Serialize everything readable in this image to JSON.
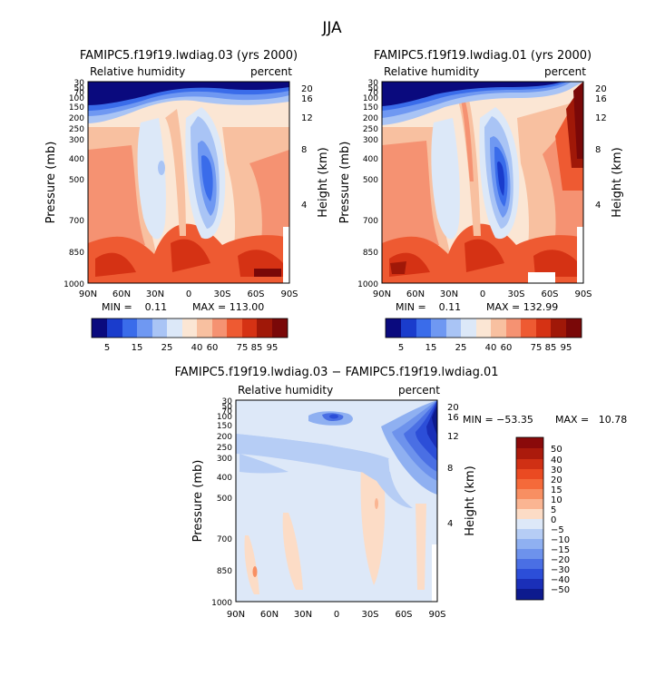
{
  "figure_title": "JJA",
  "chart_data": [
    {
      "type": "heatmap",
      "title": "FAMIPC5.f19f19.lwdiag.03 (yrs 2000)",
      "subtitle_left": "Relative humidity",
      "subtitle_right": "percent",
      "xlabel": "",
      "ylabel": "Pressure (mb)",
      "ylabel_right": "Height (km)",
      "x_ticks": [
        "90N",
        "60N",
        "30N",
        "0",
        "30S",
        "60S",
        "90S"
      ],
      "x_range": [
        90,
        -90
      ],
      "y_ticks": [
        "30",
        "50",
        "70",
        "100",
        "150",
        "200",
        "250",
        "300",
        "400",
        "500",
        "700",
        "850",
        "1000"
      ],
      "y_range": [
        30,
        1000
      ],
      "height_ticks": [
        "20",
        "16",
        "12",
        "8",
        "4"
      ],
      "min_label": "MIN =    0.11",
      "max_label": "MAX = 113.00",
      "min": 0.11,
      "max": 113.0,
      "levels": [
        5,
        15,
        25,
        40,
        60,
        75,
        85,
        95
      ],
      "colorbar_labels": [
        "5",
        "15",
        "25",
        "40",
        "60",
        "75",
        "85",
        "95"
      ]
    },
    {
      "type": "heatmap",
      "title": "FAMIPC5.f19f19.lwdiag.01 (yrs 2000)",
      "subtitle_left": "Relative humidity",
      "subtitle_right": "percent",
      "xlabel": "",
      "ylabel": "Pressure (mb)",
      "ylabel_right": "Height (km)",
      "x_ticks": [
        "90N",
        "60N",
        "30N",
        "0",
        "30S",
        "60S",
        "90S"
      ],
      "x_range": [
        90,
        -90
      ],
      "y_ticks": [
        "30",
        "50",
        "70",
        "100",
        "150",
        "200",
        "250",
        "300",
        "400",
        "500",
        "700",
        "850",
        "1000"
      ],
      "y_range": [
        30,
        1000
      ],
      "height_ticks": [
        "20",
        "16",
        "12",
        "8",
        "4"
      ],
      "min_label": "MIN =    0.11",
      "max_label": "MAX = 132.99",
      "min": 0.11,
      "max": 132.99,
      "levels": [
        5,
        15,
        25,
        40,
        60,
        75,
        85,
        95
      ],
      "colorbar_labels": [
        "5",
        "15",
        "25",
        "40",
        "60",
        "75",
        "85",
        "95"
      ]
    },
    {
      "type": "heatmap",
      "title": "FAMIPC5.f19f19.lwdiag.03 − FAMIPC5.f19f19.lwdiag.01",
      "subtitle_left": "Relative humidity",
      "subtitle_right": "percent",
      "xlabel": "",
      "ylabel": "Pressure (mb)",
      "ylabel_right": "Height (km)",
      "x_ticks": [
        "90N",
        "60N",
        "30N",
        "0",
        "30S",
        "60S",
        "90S"
      ],
      "x_range": [
        90,
        -90
      ],
      "y_ticks": [
        "30",
        "50",
        "70",
        "100",
        "150",
        "200",
        "250",
        "300",
        "400",
        "500",
        "700",
        "850",
        "1000"
      ],
      "y_range": [
        30,
        1000
      ],
      "height_ticks": [
        "20",
        "16",
        "12",
        "8",
        "4"
      ],
      "min_label": "MIN = −53.35",
      "max_label": "MAX =   10.78",
      "min": -53.35,
      "max": 10.78,
      "levels": [
        -50,
        -40,
        -30,
        -20,
        -15,
        -10,
        -5,
        0,
        5,
        10,
        15,
        20,
        30,
        40,
        50
      ],
      "colorbar_labels": [
        "50",
        "40",
        "30",
        "20",
        "15",
        "10",
        "5",
        "0",
        "−5",
        "−10",
        "−15",
        "−20",
        "−30",
        "−40",
        "−50"
      ]
    }
  ],
  "colors": {
    "rh_scale": [
      "#0a0a7e",
      "#1a3ccc",
      "#3a6cea",
      "#6f98f2",
      "#a9c4f5",
      "#dce8f8",
      "#fbe6d4",
      "#f8c0a0",
      "#f59272",
      "#ee5a32",
      "#d53214",
      "#a01808",
      "#7a0808"
    ],
    "diff_scale": [
      "#8a0a0a",
      "#ab1a0c",
      "#d03014",
      "#ea4a22",
      "#f56a3a",
      "#f88f62",
      "#fab592",
      "#fcdcc6",
      "#dde8f8",
      "#b6cdf5",
      "#8fb0f1",
      "#6d92ec",
      "#4a6fe4",
      "#2c4ed8",
      "#1a2fb8",
      "#0d1a8e"
    ]
  }
}
